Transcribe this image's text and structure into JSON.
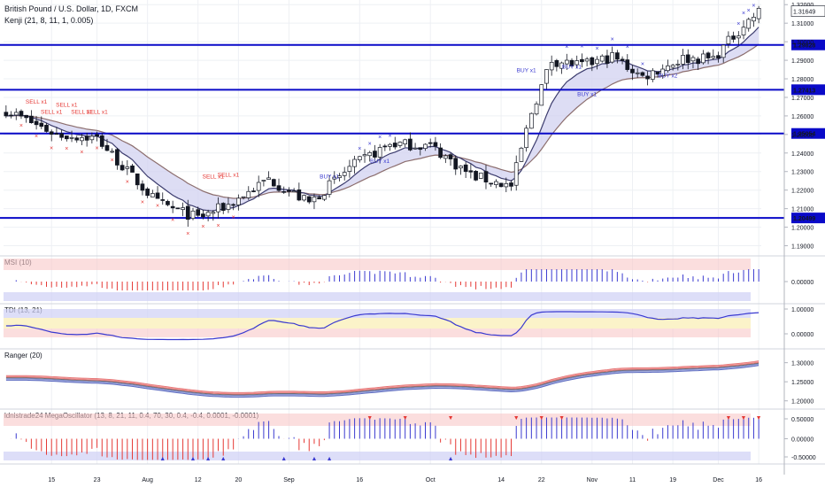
{
  "header": {
    "symbol": "British Pound / U.S. Dollar, 1D, FXCM",
    "indicator": "Kenji (21, 8, 11, 1, 0.005)"
  },
  "colors": {
    "bull": "#ffffff",
    "bear": "#131722",
    "level": "#0a0ac8",
    "band_fill": "#d2d2f0",
    "ma_dark": "#3c3c6e",
    "ma_upper": "#8c6e6e",
    "sell": "#e53935",
    "buy": "#3a3ad0",
    "red_band": "#f8c8c8",
    "blue_band": "#cfd0f5"
  },
  "chart_data": [
    {
      "type": "candlestick",
      "pane": "price",
      "y_ticks": [
        "1.32000",
        "1.31000",
        "1.30000",
        "1.29000",
        "1.28000",
        "1.27000",
        "1.26000",
        "1.25000",
        "1.24000",
        "1.23000",
        "1.22000",
        "1.21000",
        "1.20000",
        "1.19000"
      ],
      "ylim": [
        1.185,
        1.3225
      ],
      "last_price": "1.31649",
      "levels": [
        {
          "label": "1.29828",
          "value": 1.29828
        },
        {
          "label": "1.27413",
          "value": 1.27413
        },
        {
          "label": "1.25054",
          "value": 1.25054
        },
        {
          "label": "1.20499",
          "value": 1.20499
        }
      ],
      "x_ticks": [
        "15",
        "23",
        "Aug",
        "12",
        "20",
        "Sep",
        "16",
        "Oct",
        "14",
        "22",
        "Nov",
        "11",
        "19",
        "Dec",
        "16"
      ],
      "signals": [
        {
          "text": "SELL x1",
          "bar": 6,
          "price": 1.2667
        },
        {
          "text": "SELL x1",
          "bar": 9,
          "price": 1.2612
        },
        {
          "text": "SELL x1",
          "bar": 12,
          "price": 1.2649
        },
        {
          "text": "SELL x1",
          "bar": 15,
          "price": 1.2612
        },
        {
          "text": "SELL x1",
          "bar": 18,
          "price": 1.2612
        },
        {
          "text": "SELL x1",
          "bar": 41,
          "price": 1.2264
        },
        {
          "text": "SELL x1",
          "bar": 44,
          "price": 1.2273
        },
        {
          "text": "BUY x1",
          "bar": 64,
          "price": 1.2264
        },
        {
          "text": "BUY x1",
          "bar": 74,
          "price": 1.2346
        },
        {
          "text": "BUY x1",
          "bar": 103,
          "price": 1.2836
        },
        {
          "text": "BUY x1",
          "bar": 112,
          "price": 1.2854
        },
        {
          "text": "BUY x1",
          "bar": 115,
          "price": 1.2708
        },
        {
          "text": "BUY x2",
          "bar": 131,
          "price": 1.2808
        }
      ]
    },
    {
      "type": "bar",
      "pane": "osc1",
      "label": "MSI (10)",
      "y_ticks": [
        "0.00000"
      ]
    },
    {
      "type": "line",
      "pane": "osc2",
      "label": "TDI (13, 21)",
      "y_ticks": [
        "1.00000",
        "0.00000"
      ]
    },
    {
      "type": "line",
      "pane": "osc3",
      "label": "Ranger (20)",
      "y_ticks": [
        "1.30000",
        "1.25000",
        "1.20000"
      ]
    },
    {
      "type": "bar",
      "pane": "osc4",
      "label": "ldnistrade24 MegaOscillator (13, 8, 21, 11, 0.4, 70, 30, 0.4, -0.4, 0.0001, -0.0001)",
      "y_ticks": [
        "0.50000",
        "0.00000",
        "-0.50000"
      ]
    }
  ]
}
